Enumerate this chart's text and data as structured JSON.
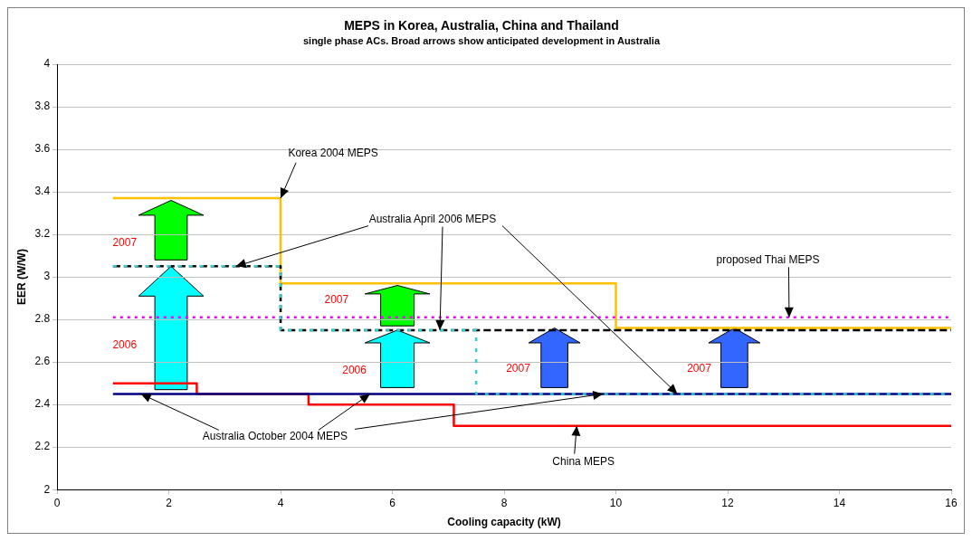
{
  "chart_data": {
    "type": "step",
    "title": "MEPS in Korea, Australia, China and Thailand",
    "subtitle": "single phase ACs. Broad arrows show anticipated development in Australia",
    "xlabel": "Cooling capacity (kW)",
    "ylabel": "EER (W/W)",
    "xlim": [
      0,
      16
    ],
    "xticks": [
      0,
      2,
      4,
      6,
      8,
      10,
      12,
      14,
      16
    ],
    "ylim": [
      2,
      4
    ],
    "yticks": [
      2,
      2.2,
      2.4,
      2.6,
      2.8,
      3,
      3.2,
      3.4,
      3.6,
      3.8,
      4
    ],
    "grid": "y",
    "legend": false,
    "marker": "none",
    "series": [
      {
        "color": "#33cccc",
        "line_style": "dashed",
        "x": [
          1,
          4,
          7.5,
          16
        ],
        "values": [
          3.05,
          2.75,
          2.45,
          2.45
        ]
      },
      {
        "color": "#000000",
        "line_style": "dashed",
        "x": [
          1,
          4,
          16
        ],
        "values": [
          3.05,
          2.75,
          2.75
        ]
      },
      {
        "color": "#ff00ff",
        "line_style": "dotted",
        "x": [
          1,
          16
        ],
        "values": [
          2.81,
          2.81
        ]
      },
      {
        "color": "#ffc000",
        "line_style": "solid",
        "x": [
          1,
          4,
          10,
          16
        ],
        "values": [
          3.37,
          2.97,
          2.76,
          2.76
        ]
      },
      {
        "color": "#000080",
        "line_style": "solid",
        "x": [
          1,
          16
        ],
        "values": [
          2.45,
          2.45
        ]
      },
      {
        "color": "#ff0000",
        "line_style": "solid",
        "x": [
          1,
          2.5,
          4.5,
          7.1,
          16
        ],
        "values": [
          2.5,
          2.45,
          2.4,
          2.3,
          2.3
        ]
      }
    ],
    "annotations": [
      {
        "text": "Korea 2004 MEPS",
        "x": 4,
        "y": 3.37
      },
      {
        "text": "Australia April 2006 MEPS",
        "x": 3.2,
        "y": 3.05
      },
      {
        "text": "proposed Thai MEPS",
        "x": 13.1,
        "y": 2.81
      },
      {
        "text": "Australia October 2004 MEPS",
        "x": 1.5,
        "y": 2.45
      },
      {
        "text": "China MEPS",
        "x": 9.3,
        "y": 2.3
      },
      "2007",
      "2006",
      "2007",
      "2006",
      "2007",
      "2007"
    ]
  }
}
